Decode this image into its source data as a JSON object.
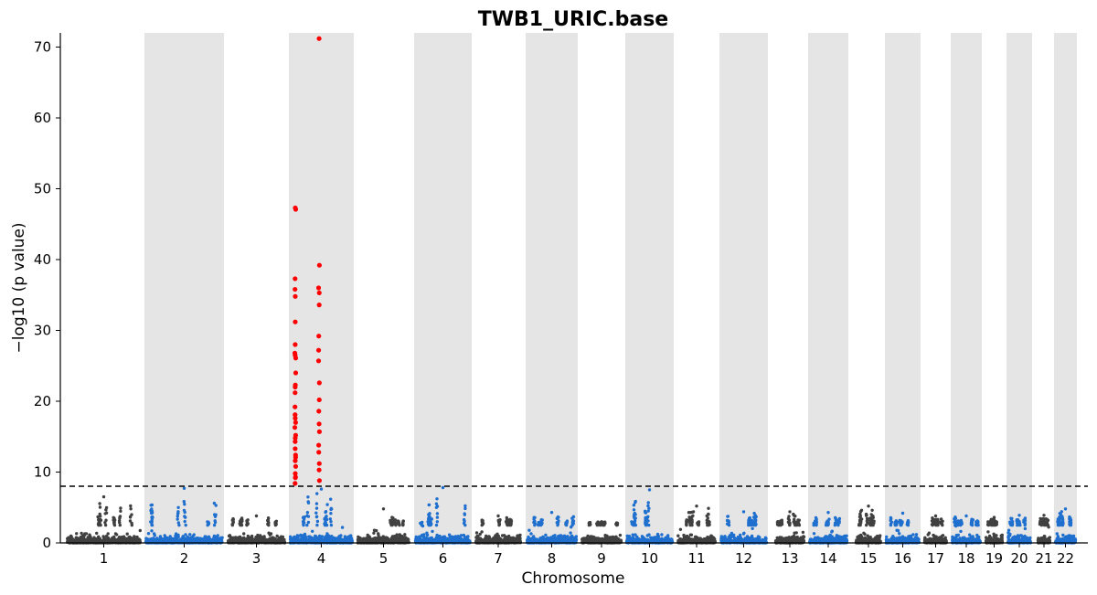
{
  "chart_data": {
    "type": "scatter",
    "title": "TWB1_URIC.base",
    "xlabel": "Chromosome",
    "ylabel": "−log10 (p value)",
    "ylim": [
      0,
      72
    ],
    "y_ticks": [
      0,
      10,
      20,
      30,
      40,
      50,
      60,
      70
    ],
    "significance_threshold": 8,
    "colors": {
      "odd_chromosome": "#404040",
      "even_chromosome": "#1f6fce",
      "significant": "#ff0000",
      "shade": "#e5e5e5",
      "threshold_line": "#000000"
    },
    "chromosomes": [
      {
        "label": "1",
        "max_nonsig": 6.5
      },
      {
        "label": "2",
        "max_nonsig": 7.7
      },
      {
        "label": "3",
        "max_nonsig": 3.8
      },
      {
        "label": "4",
        "max_nonsig": 7.6,
        "significant_points": [
          71.2,
          47.3,
          47.1,
          39.2,
          37.3,
          36.0,
          35.8,
          35.3,
          34.8,
          33.6,
          31.2,
          29.2,
          28.0,
          27.2,
          26.8,
          26.5,
          26.1,
          25.7,
          24.0,
          22.6,
          22.3,
          22.0,
          21.2,
          20.2,
          19.2,
          18.6,
          18.1,
          17.6,
          17.0,
          16.8,
          16.3,
          15.7,
          15.2,
          14.8,
          14.3,
          13.8,
          13.3,
          12.8,
          12.4,
          12.1,
          11.6,
          11.2,
          10.8,
          10.3,
          9.8,
          9.3,
          9.2,
          8.8,
          8.4
        ]
      },
      {
        "label": "5",
        "max_nonsig": 4.8
      },
      {
        "label": "6",
        "max_nonsig": 7.8
      },
      {
        "label": "7",
        "max_nonsig": 3.8
      },
      {
        "label": "8",
        "max_nonsig": 4.3
      },
      {
        "label": "9",
        "max_nonsig": 3.0
      },
      {
        "label": "10",
        "max_nonsig": 7.5
      },
      {
        "label": "11",
        "max_nonsig": 5.2
      },
      {
        "label": "12",
        "max_nonsig": 4.4
      },
      {
        "label": "13",
        "max_nonsig": 4.4
      },
      {
        "label": "14",
        "max_nonsig": 4.3
      },
      {
        "label": "15",
        "max_nonsig": 5.2
      },
      {
        "label": "16",
        "max_nonsig": 4.2
      },
      {
        "label": "17",
        "max_nonsig": 3.8
      },
      {
        "label": "18",
        "max_nonsig": 3.8
      },
      {
        "label": "19",
        "max_nonsig": 3.6
      },
      {
        "label": "20",
        "max_nonsig": 3.9
      },
      {
        "label": "21",
        "max_nonsig": 3.9
      },
      {
        "label": "22",
        "max_nonsig": 4.8
      }
    ]
  }
}
